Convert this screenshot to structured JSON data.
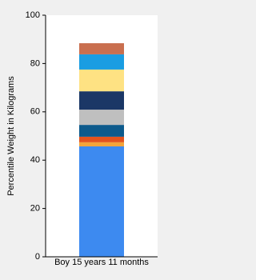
{
  "chart_data": {
    "type": "stacked_bar",
    "y_label": "Percentile Weight in Kilograms",
    "categories": [
      "Boy 15 years 11 months"
    ],
    "series": [
      {
        "color": "#3d8af0",
        "values": [
          45.7
        ]
      },
      {
        "color": "#f3a43a",
        "values": [
          1.7
        ]
      },
      {
        "color": "#e2531e",
        "values": [
          2.3
        ]
      },
      {
        "color": "#0d5a8c",
        "values": [
          4.9
        ]
      },
      {
        "color": "#bfbfbf",
        "values": [
          6.3
        ]
      },
      {
        "color": "#1b3766",
        "values": [
          7.6
        ]
      },
      {
        "color": "#fee283",
        "values": [
          9.0
        ]
      },
      {
        "color": "#1a9de2",
        "values": [
          6.3
        ]
      },
      {
        "color": "#c96f4f",
        "values": [
          4.6
        ]
      }
    ],
    "ylim": [
      0,
      100
    ],
    "yticks": [
      0,
      20,
      40,
      60,
      80,
      100
    ],
    "grid": false
  }
}
